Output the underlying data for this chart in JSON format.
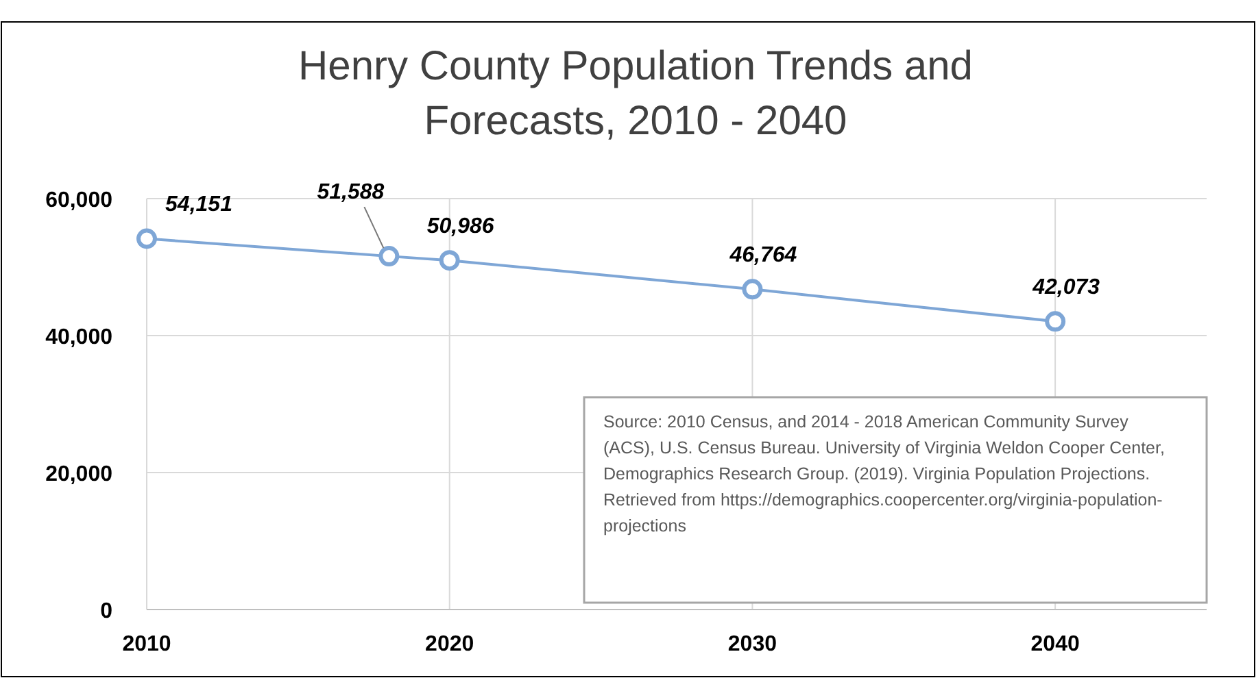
{
  "chart_data": {
    "type": "line",
    "title": "Henry County Population Trends and Forecasts, 2010 - 2040",
    "x": [
      2010,
      2018,
      2020,
      2030,
      2040
    ],
    "series": [
      {
        "color": "#7ea6d6",
        "values": [
          54151,
          51588,
          50986,
          46764,
          42073
        ],
        "value_labels": [
          "54,151",
          "51,588",
          "50,986",
          "46,764",
          "42,073"
        ]
      }
    ],
    "xlim": [
      2010,
      2045
    ],
    "xticks": [
      2010,
      2020,
      2030,
      2040
    ],
    "ylim": [
      0,
      60000
    ],
    "yticks": [
      {
        "value": 0,
        "label": "0"
      },
      {
        "value": 20000,
        "label": "20,000"
      },
      {
        "value": 40000,
        "label": "40,000"
      },
      {
        "value": 60000,
        "label": "60,000"
      }
    ],
    "grid": true,
    "marker": "circle",
    "line_style": "solid",
    "annotations": [
      "Source:  2010 Census, and 2014 - 2018 American Community Survey (ACS), U.S. Census Bureau.  University of Virginia Weldon Cooper Center, Demographics Research Group. (2019). Virginia Population Projections.  Retrieved from https://demographics.coopercenter.org/virginia-population-projections"
    ]
  }
}
